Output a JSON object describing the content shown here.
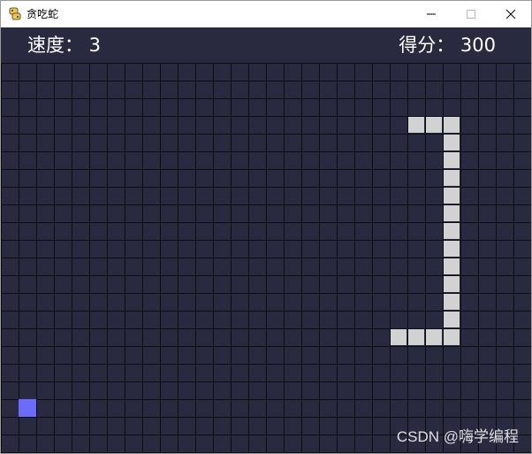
{
  "window": {
    "title": "贪吃蛇",
    "app_icon": "python-icon",
    "controls": [
      "minimize-icon",
      "maximize-icon",
      "close-icon"
    ]
  },
  "hud": {
    "speed_text": "速度： 3",
    "score_text": "得分： 300"
  },
  "game": {
    "grid_cols": 30,
    "grid_rows": 22,
    "snake_cells": [
      [
        23,
        3
      ],
      [
        24,
        3
      ],
      [
        25,
        3
      ],
      [
        25,
        4
      ],
      [
        25,
        5
      ],
      [
        25,
        6
      ],
      [
        25,
        7
      ],
      [
        25,
        8
      ],
      [
        25,
        9
      ],
      [
        25,
        10
      ],
      [
        25,
        11
      ],
      [
        25,
        12
      ],
      [
        25,
        13
      ],
      [
        25,
        14
      ],
      [
        25,
        15
      ],
      [
        24,
        15
      ],
      [
        23,
        15
      ],
      [
        22,
        15
      ]
    ],
    "food_cell": [
      1,
      19
    ],
    "colors": {
      "background": "#292a40",
      "grid_line": "#0c0c14",
      "snake": "#d2d2d2",
      "food": "#6c6cfc"
    }
  },
  "watermark": "CSDN @嗨学编程"
}
